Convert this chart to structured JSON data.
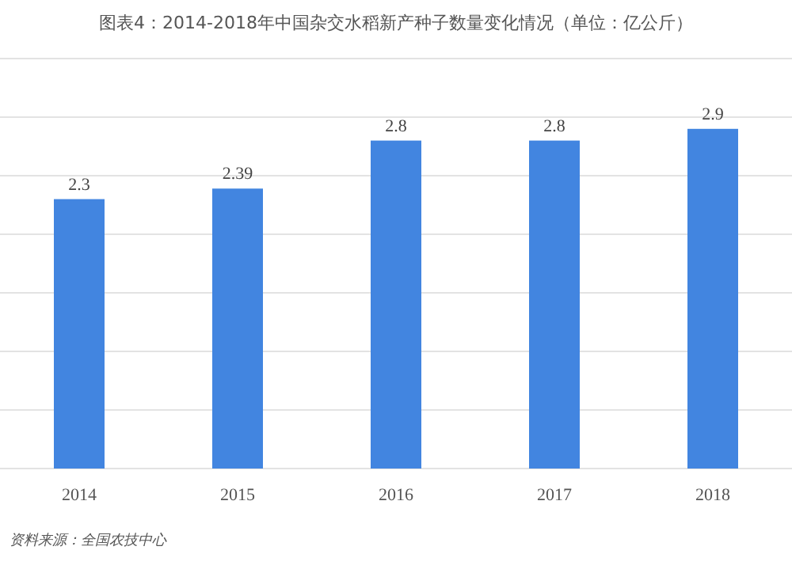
{
  "chart_data": {
    "type": "bar",
    "title": "图表4：2014-2018年中国杂交水稻新产种子数量变化情况（单位：亿公斤）",
    "categories": [
      "2014",
      "2015",
      "2016",
      "2017",
      "2018"
    ],
    "values": [
      2.3,
      2.39,
      2.8,
      2.8,
      2.9
    ],
    "color": "#4285e0",
    "data_labels": true,
    "ylim": [
      0,
      3.5
    ],
    "yticks": [
      {
        "value": 0,
        "label": null
      },
      {
        "value": 0.5,
        "label": null
      },
      {
        "value": 1,
        "label": null
      },
      {
        "value": 1.5,
        "label": null
      },
      {
        "value": 2,
        "label": null
      },
      {
        "value": 2.5,
        "label": null
      },
      {
        "value": 3,
        "label": null
      },
      {
        "value": 3.5,
        "label": null
      }
    ],
    "tick_labels": "x",
    "grid": "y",
    "annotations": [
      "资料来源：全国农技中心"
    ]
  }
}
